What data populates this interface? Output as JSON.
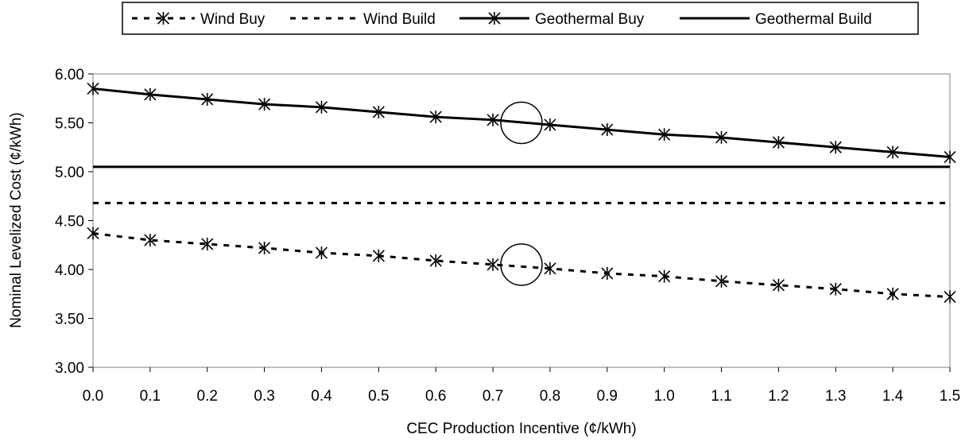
{
  "chart_data": {
    "type": "line",
    "title": "",
    "xlabel": "CEC Production Incentive (¢/kWh)",
    "ylabel": "Nominal Levelized Cost (¢/kWh)",
    "x": [
      0.0,
      0.1,
      0.2,
      0.3,
      0.4,
      0.5,
      0.6,
      0.7,
      0.8,
      0.9,
      1.0,
      1.1,
      1.2,
      1.3,
      1.4,
      1.5
    ],
    "x_tick_labels": [
      "0.0",
      "0.1",
      "0.2",
      "0.3",
      "0.4",
      "0.5",
      "0.6",
      "0.7",
      "0.8",
      "0.9",
      "1.0",
      "1.1",
      "1.2",
      "1.3",
      "1.4",
      "1.5"
    ],
    "xlim": [
      0.0,
      1.5
    ],
    "y_tick_labels": [
      "3.00",
      "3.50",
      "4.00",
      "4.50",
      "5.00",
      "5.50",
      "6.00"
    ],
    "y_ticks": [
      3.0,
      3.5,
      4.0,
      4.5,
      5.0,
      5.5,
      6.0
    ],
    "ylim": [
      3.0,
      6.0
    ],
    "grid": false,
    "legend_position": "top",
    "series": [
      {
        "name": "Wind Buy",
        "style": "dashed",
        "marker": "asterisk",
        "color": "#000000",
        "values": [
          4.37,
          4.3,
          4.26,
          4.22,
          4.17,
          4.14,
          4.09,
          4.05,
          4.01,
          3.96,
          3.93,
          3.88,
          3.84,
          3.8,
          3.75,
          3.72
        ]
      },
      {
        "name": "Wind Build",
        "style": "dashed",
        "marker": "none",
        "color": "#000000",
        "values": [
          4.68,
          4.68,
          4.68,
          4.68,
          4.68,
          4.68,
          4.68,
          4.68,
          4.68,
          4.68,
          4.68,
          4.68,
          4.68,
          4.68,
          4.68,
          4.68
        ]
      },
      {
        "name": "Geothermal Buy",
        "style": "solid",
        "marker": "asterisk",
        "color": "#000000",
        "values": [
          5.85,
          5.79,
          5.74,
          5.69,
          5.66,
          5.61,
          5.56,
          5.53,
          5.48,
          5.43,
          5.38,
          5.35,
          5.3,
          5.25,
          5.2,
          5.15
        ]
      },
      {
        "name": "Geothermal Build",
        "style": "solid",
        "marker": "none",
        "color": "#000000",
        "values": [
          5.05,
          5.05,
          5.05,
          5.05,
          5.05,
          5.05,
          5.05,
          5.05,
          5.05,
          5.05,
          5.05,
          5.05,
          5.05,
          5.05,
          5.05,
          5.05
        ]
      }
    ],
    "annotations": [
      {
        "type": "circle",
        "x": 0.75,
        "y": 5.5,
        "note": "open circle on Geothermal Buy"
      },
      {
        "type": "circle",
        "x": 0.75,
        "y": 4.05,
        "note": "open circle on Wind Buy"
      }
    ]
  }
}
